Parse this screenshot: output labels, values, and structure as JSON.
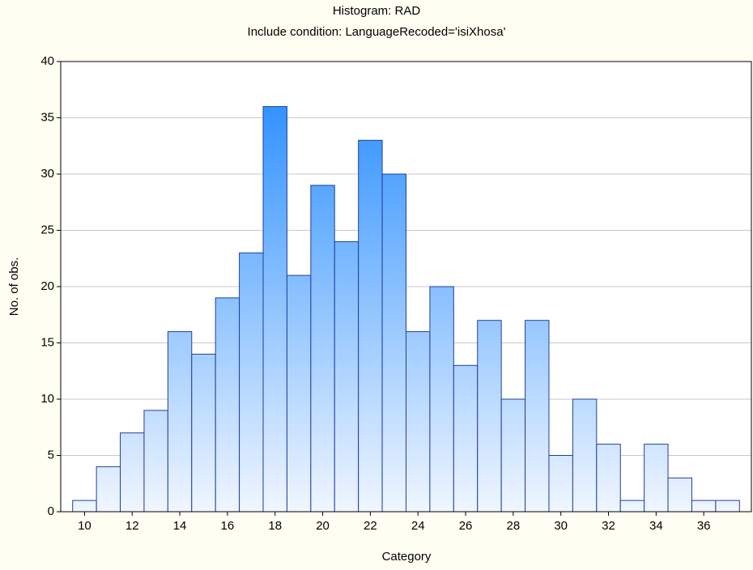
{
  "chart_data": {
    "type": "histogram",
    "title": "Histogram: RAD",
    "subtitle": "Include condition: LanguageRecoded='isiXhosa'",
    "x_label": "Category",
    "y_label": "No. of obs.",
    "bins": [
      9.5,
      10.5,
      11.5,
      12.5,
      13.5,
      14.5,
      15.5,
      16.5,
      17.5,
      18.5,
      19.5,
      20.5,
      21.5,
      22.5,
      23.5,
      24.5,
      25.5,
      26.5,
      27.5,
      28.5,
      29.5,
      30.5,
      31.5,
      32.5,
      33.5,
      34.5,
      35.5,
      36.5,
      37.5
    ],
    "values": [
      1,
      4,
      7,
      9,
      16,
      14,
      19,
      23,
      36,
      21,
      29,
      24,
      33,
      30,
      16,
      20,
      13,
      17,
      10,
      17,
      5,
      10,
      6,
      1,
      6,
      3,
      1,
      1
    ],
    "color": "#1e88ff",
    "xlim": [
      9,
      38
    ],
    "xticks": [
      10,
      12,
      14,
      16,
      18,
      20,
      22,
      24,
      26,
      28,
      30,
      32,
      34,
      36
    ],
    "ylim": [
      0,
      40
    ],
    "yticks": [
      0,
      5,
      10,
      15,
      20,
      25,
      30,
      35,
      40
    ],
    "grid": true
  }
}
